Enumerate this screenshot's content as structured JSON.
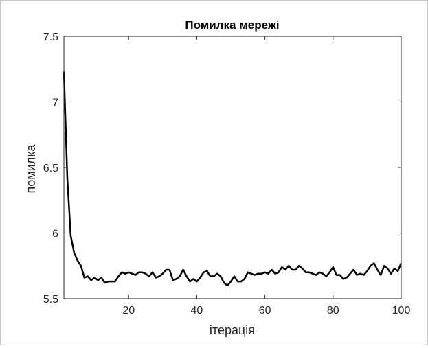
{
  "chart_data": {
    "type": "line",
    "title": "Помилка мережі",
    "xlabel": "ітерація",
    "ylabel": "помилка",
    "xlim": [
      1,
      100
    ],
    "ylim": [
      5.5,
      7.5
    ],
    "x_ticks": [
      20,
      40,
      60,
      80,
      100
    ],
    "x_tick_labels": [
      "20",
      "40",
      "60",
      "80",
      "100"
    ],
    "y_ticks": [
      5.5,
      6,
      6.5,
      7,
      7.5
    ],
    "y_tick_labels": [
      "5.5",
      "6",
      "6.5",
      "7",
      "7.5"
    ],
    "grid": false,
    "series": [
      {
        "color": "#000000",
        "x": [
          1,
          2,
          3,
          4,
          5,
          6,
          7,
          8,
          9,
          10,
          11,
          12,
          13,
          14,
          15,
          16,
          17,
          18,
          19,
          20,
          21,
          22,
          23,
          24,
          25,
          26,
          27,
          28,
          29,
          30,
          31,
          32,
          33,
          34,
          35,
          36,
          37,
          38,
          39,
          40,
          41,
          42,
          43,
          44,
          45,
          46,
          47,
          48,
          49,
          50,
          51,
          52,
          53,
          54,
          55,
          56,
          57,
          58,
          59,
          60,
          61,
          62,
          63,
          64,
          65,
          66,
          67,
          68,
          69,
          70,
          71,
          72,
          73,
          74,
          75,
          76,
          77,
          78,
          79,
          80,
          81,
          82,
          83,
          84,
          85,
          86,
          87,
          88,
          89,
          90,
          91,
          92,
          93,
          94,
          95,
          96,
          97,
          98,
          99,
          100
        ],
        "y": [
          7.23,
          6.42,
          5.98,
          5.85,
          5.79,
          5.75,
          5.66,
          5.67,
          5.64,
          5.66,
          5.64,
          5.66,
          5.62,
          5.63,
          5.63,
          5.63,
          5.67,
          5.7,
          5.69,
          5.7,
          5.69,
          5.68,
          5.7,
          5.7,
          5.69,
          5.67,
          5.7,
          5.66,
          5.67,
          5.69,
          5.72,
          5.72,
          5.64,
          5.65,
          5.67,
          5.72,
          5.67,
          5.63,
          5.65,
          5.63,
          5.66,
          5.7,
          5.71,
          5.67,
          5.67,
          5.69,
          5.67,
          5.62,
          5.6,
          5.63,
          5.67,
          5.63,
          5.63,
          5.65,
          5.7,
          5.69,
          5.68,
          5.69,
          5.69,
          5.7,
          5.69,
          5.72,
          5.69,
          5.7,
          5.74,
          5.72,
          5.75,
          5.72,
          5.72,
          5.75,
          5.73,
          5.7,
          5.7,
          5.69,
          5.68,
          5.7,
          5.69,
          5.67,
          5.7,
          5.74,
          5.68,
          5.68,
          5.65,
          5.66,
          5.69,
          5.72,
          5.68,
          5.69,
          5.68,
          5.71,
          5.75,
          5.77,
          5.72,
          5.68,
          5.75,
          5.73,
          5.69,
          5.73,
          5.71,
          5.77
        ]
      }
    ]
  }
}
